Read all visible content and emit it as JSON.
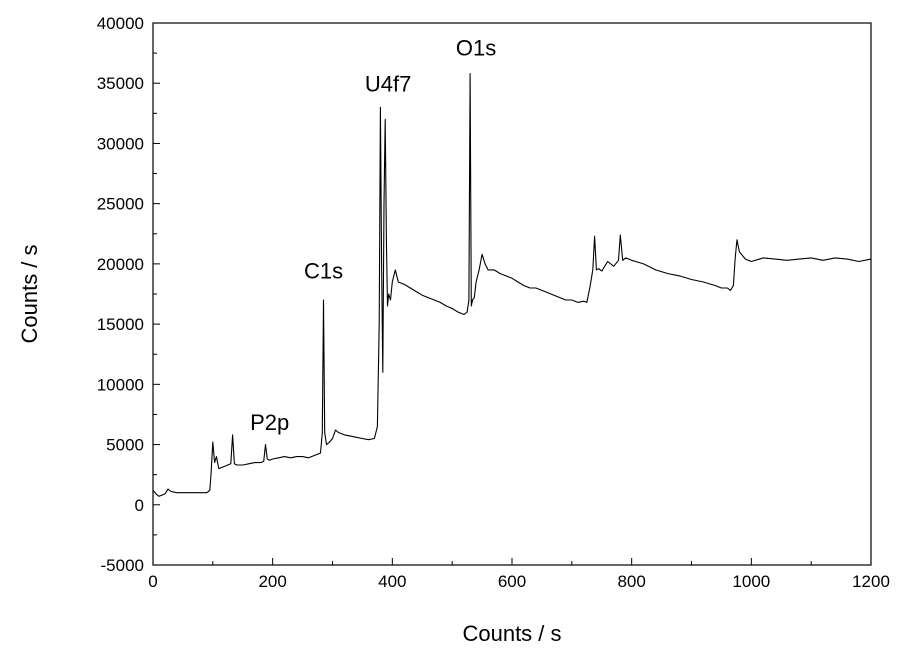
{
  "chart_data": {
    "type": "line",
    "title": "",
    "xlabel": "Counts / s",
    "ylabel": "Counts / s",
    "xlim": [
      0,
      1200
    ],
    "ylim": [
      -5000,
      40000
    ],
    "xticks": [
      0,
      200,
      400,
      600,
      800,
      1000,
      1200
    ],
    "xminor_step": 100,
    "yticks": [
      -5000,
      0,
      5000,
      10000,
      15000,
      20000,
      25000,
      30000,
      35000,
      40000
    ],
    "yminor_step": 2500,
    "grid": false,
    "legend": "none",
    "line_color": "#000000",
    "annotations": [
      {
        "text": "P2p",
        "x": 195,
        "y": 6200
      },
      {
        "text": "C1s",
        "x": 285,
        "y": 18800
      },
      {
        "text": "U4f7",
        "x": 393,
        "y": 34300
      },
      {
        "text": "O1s",
        "x": 540,
        "y": 37300
      }
    ],
    "series": [
      {
        "x": [
          0,
          5,
          10,
          15,
          20,
          25,
          30,
          40,
          50,
          60,
          70,
          80,
          90,
          95,
          97,
          100,
          103,
          106,
          110,
          115,
          120,
          125,
          130,
          133,
          136,
          140,
          150,
          160,
          170,
          180,
          185,
          188,
          191,
          195,
          200,
          210,
          220,
          230,
          240,
          250,
          260,
          270,
          280,
          283,
          285,
          287,
          290,
          295,
          300,
          305,
          310,
          320,
          330,
          340,
          350,
          360,
          370,
          375,
          378,
          380,
          382,
          384,
          386,
          388,
          390,
          392,
          394,
          397,
          400,
          405,
          410,
          420,
          430,
          440,
          450,
          460,
          470,
          480,
          490,
          500,
          510,
          520,
          525,
          528,
          530,
          532,
          534,
          537,
          540,
          545,
          550,
          555,
          560,
          570,
          580,
          590,
          600,
          610,
          620,
          630,
          640,
          650,
          660,
          670,
          680,
          690,
          700,
          710,
          720,
          725,
          730,
          735,
          738,
          741,
          745,
          750,
          755,
          760,
          770,
          778,
          781,
          785,
          790,
          800,
          820,
          840,
          860,
          880,
          900,
          920,
          940,
          950,
          960,
          965,
          970,
          973,
          976,
          980,
          990,
          1000,
          1020,
          1040,
          1060,
          1080,
          1100,
          1120,
          1140,
          1160,
          1180,
          1200
        ],
        "y": [
          1200,
          900,
          700,
          800,
          900,
          1300,
          1100,
          1000,
          1000,
          1000,
          1000,
          1000,
          1000,
          1200,
          2500,
          5200,
          3500,
          4000,
          3000,
          3100,
          3200,
          3300,
          3400,
          5800,
          3400,
          3300,
          3300,
          3400,
          3500,
          3500,
          3600,
          5000,
          3800,
          3700,
          3800,
          3900,
          4000,
          3900,
          4000,
          4000,
          3900,
          4100,
          4300,
          6000,
          17000,
          6000,
          5000,
          5200,
          5500,
          6200,
          6000,
          5800,
          5700,
          5600,
          5500,
          5400,
          5500,
          6500,
          15000,
          33000,
          20000,
          11000,
          25000,
          32000,
          22000,
          16500,
          17500,
          17000,
          18500,
          19500,
          18500,
          18300,
          18000,
          17700,
          17400,
          17200,
          17000,
          16800,
          16500,
          16300,
          16000,
          15800,
          16000,
          17000,
          35800,
          16500,
          17000,
          17200,
          18500,
          19500,
          20800,
          20000,
          19500,
          19500,
          19200,
          19000,
          18800,
          18500,
          18200,
          18000,
          18000,
          17800,
          17600,
          17400,
          17200,
          17000,
          17000,
          16800,
          16900,
          16800,
          18000,
          19500,
          22300,
          19500,
          19600,
          19400,
          19800,
          20200,
          19800,
          20300,
          22400,
          20300,
          20500,
          20300,
          20000,
          19500,
          19200,
          19000,
          18700,
          18500,
          18200,
          18000,
          18000,
          17800,
          18200,
          20500,
          22000,
          21000,
          20400,
          20200,
          20500,
          20400,
          20300,
          20400,
          20500,
          20300,
          20500,
          20400,
          20200,
          20400
        ]
      }
    ]
  }
}
